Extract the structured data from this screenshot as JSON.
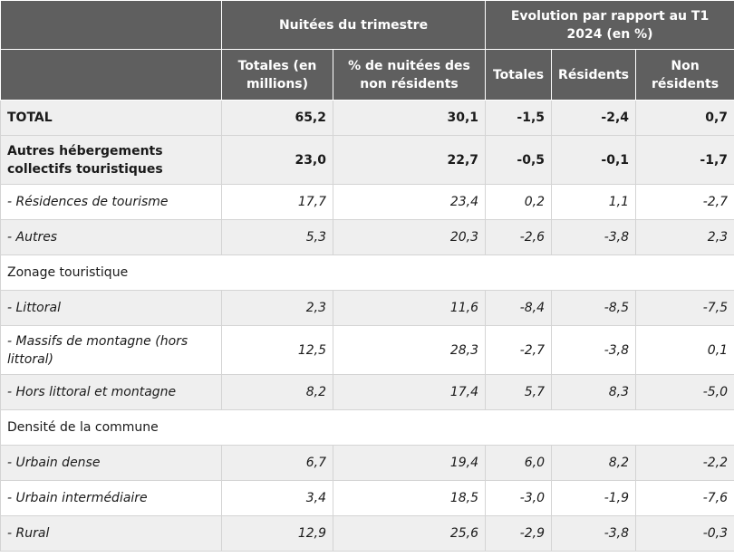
{
  "header": {
    "group1": "Nuitées du trimestre",
    "group2": "Evolution par rapport au T1 2024 (en %)",
    "columns": [
      "Totales (en millions)",
      "% de nuitées des non résidents",
      "Totales",
      "Résidents",
      "Non résidents"
    ]
  },
  "rows": [
    {
      "label": "TOTAL",
      "values": [
        "65,2",
        "30,1",
        "-1,5",
        "-2,4",
        "0,7"
      ]
    },
    {
      "label": "Autres hébergements collectifs touristiques",
      "values": [
        "23,0",
        "22,7",
        "-0,5",
        "-0,1",
        "-1,7"
      ]
    },
    {
      "label": "- Résidences de tourisme",
      "values": [
        "17,7",
        "23,4",
        "0,2",
        "1,1",
        "-2,7"
      ]
    },
    {
      "label": "- Autres",
      "values": [
        "5,3",
        "20,3",
        "-2,6",
        "-3,8",
        "2,3"
      ]
    },
    {
      "label": "Zonage touristique",
      "values": []
    },
    {
      "label": "- Littoral",
      "values": [
        "2,3",
        "11,6",
        "-8,4",
        "-8,5",
        "-7,5"
      ]
    },
    {
      "label": "- Massifs de montagne (hors littoral)",
      "values": [
        "12,5",
        "28,3",
        "-2,7",
        "-3,8",
        "0,1"
      ]
    },
    {
      "label": "- Hors littoral et montagne",
      "values": [
        "8,2",
        "17,4",
        "5,7",
        "8,3",
        "-5,0"
      ]
    },
    {
      "label": "Densité de la commune",
      "values": []
    },
    {
      "label": "- Urbain dense",
      "values": [
        "6,7",
        "19,4",
        "6,0",
        "8,2",
        "-2,2"
      ]
    },
    {
      "label": "- Urbain intermédiaire",
      "values": [
        "3,4",
        "18,5",
        "-3,0",
        "-1,9",
        "-7,6"
      ]
    },
    {
      "label": "- Rural",
      "values": [
        "12,9",
        "25,6",
        "-2,9",
        "-3,8",
        "-0,3"
      ]
    }
  ]
}
